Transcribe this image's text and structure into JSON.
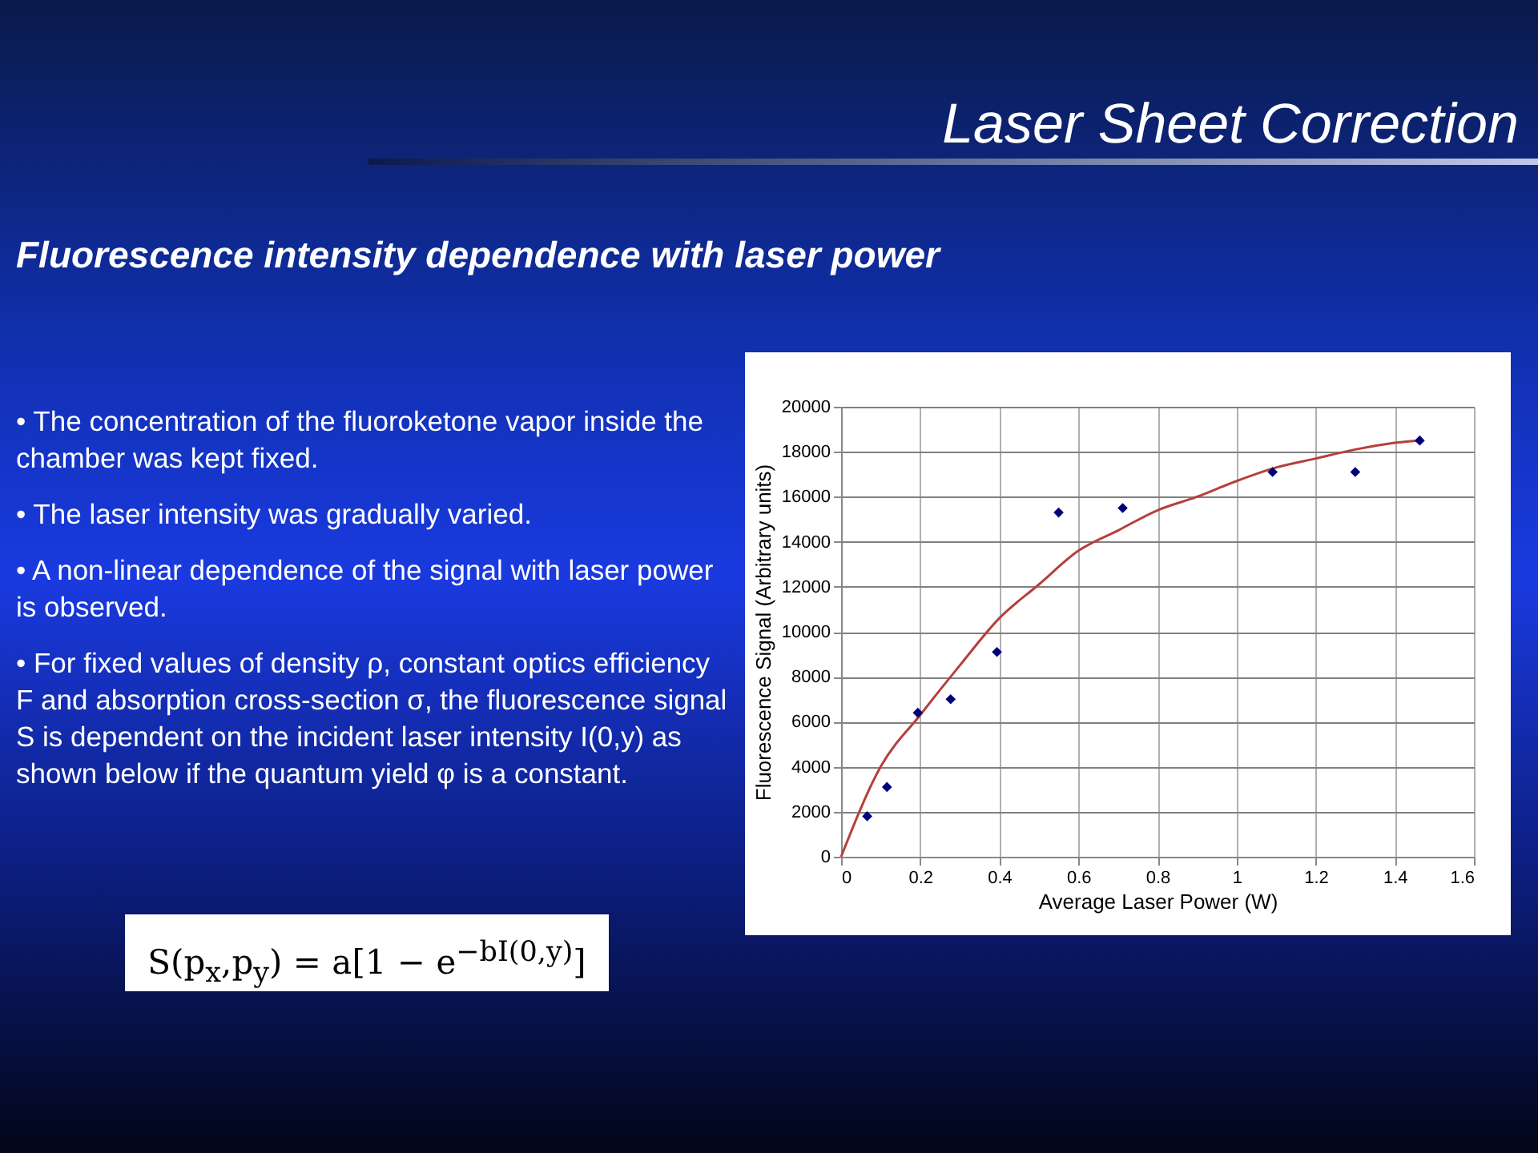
{
  "chart_data": {
    "type": "scatter",
    "title": "Laser Sheet Correction",
    "subtitle": "Fluorescence intensity dependence with laser power",
    "xlabel": "Average Laser Power (W)",
    "ylabel": "Fluorescence Signal (Arbitrary units)",
    "series": [
      {
        "color": "#00007a",
        "marker": "diamond",
        "x": [
          0.066,
          0.116,
          0.194,
          0.277,
          0.394,
          0.55,
          0.712,
          1.091,
          1.3,
          1.463
        ],
        "values": [
          1800,
          3100,
          6400,
          7000,
          9100,
          15300,
          15500,
          17100,
          17100,
          18500
        ]
      },
      {
        "type": "line",
        "color": "#b5403c",
        "line_style": "solid",
        "x": [
          0,
          0.1,
          0.2,
          0.3,
          0.4,
          0.5,
          0.6,
          0.7,
          0.8,
          0.9,
          1.0,
          1.1,
          1.2,
          1.3,
          1.4,
          1.46
        ],
        "values": [
          0,
          4000,
          6300,
          8500,
          10600,
          12100,
          13600,
          14500,
          15400,
          16000,
          16700,
          17300,
          17700,
          18100,
          18400,
          18500
        ]
      }
    ],
    "xlim": [
      0,
      1.6
    ],
    "xticks": [
      0,
      0.2,
      0.4,
      0.6,
      0.8,
      1,
      1.2,
      1.4,
      1.6
    ],
    "ylim": [
      0,
      20000
    ],
    "yticks": [
      0,
      2000,
      4000,
      6000,
      8000,
      10000,
      12000,
      14000,
      16000,
      18000,
      20000
    ],
    "grid": true,
    "annotations": [
      "• The concentration of the fluoroketone vapor inside the chamber was kept fixed.",
      "• The laser intensity was gradually varied.",
      "• A non-linear dependence of the signal with laser power is observed.",
      "• For fixed values of density ρ, constant optics efficiency F and absorption cross-section σ, the fluorescence signal S is dependent on the incident laser intensity I(0,y) as shown below if the quantum yield φ is a constant.",
      "S(p$_{x}$,p$_{y}$) = a[1 − e$^{−bI(0,y)}$]"
    ]
  }
}
